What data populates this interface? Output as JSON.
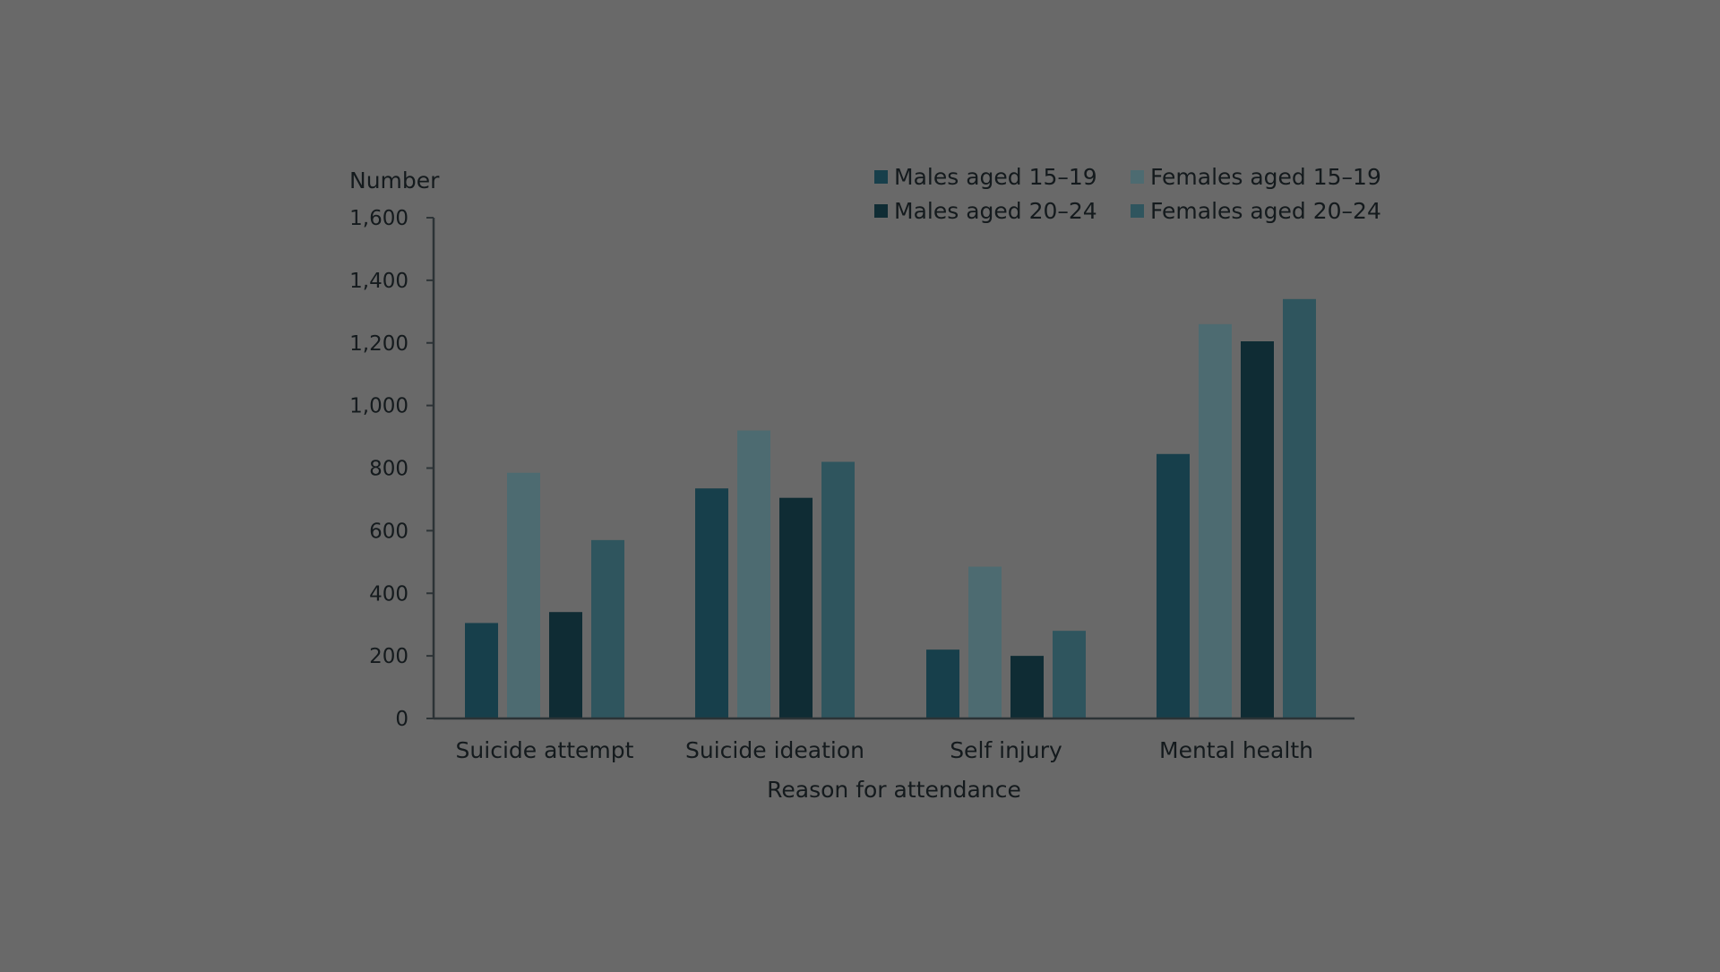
{
  "colors": {
    "background": "#696969",
    "axis": "#2c3336",
    "text": "#141a1d"
  },
  "chart_data": {
    "type": "bar",
    "title": "",
    "ylabel": "Number",
    "xlabel": "Reason for attendance",
    "ylim": [
      0,
      1600
    ],
    "yticks": [
      0,
      200,
      400,
      600,
      800,
      1000,
      1200,
      1400,
      1600
    ],
    "ytick_labels": [
      "0",
      "200",
      "400",
      "600",
      "800",
      "1,000",
      "1,200",
      "1,400",
      "1,600"
    ],
    "grid": false,
    "legend_position": "top-right",
    "categories": [
      "Suicide attempt",
      "Suicide ideation",
      "Self injury",
      "Mental health"
    ],
    "series": [
      {
        "name": "Males aged 15–19",
        "color": "#173f4b",
        "values": [
          305,
          735,
          220,
          845
        ]
      },
      {
        "name": "Females aged 15–19",
        "color": "#4d6b71",
        "values": [
          785,
          920,
          485,
          1260
        ]
      },
      {
        "name": "Males aged 20–24",
        "color": "#0f2c34",
        "values": [
          340,
          705,
          200,
          1205
        ]
      },
      {
        "name": "Females aged 20–24",
        "color": "#2f555e",
        "values": [
          570,
          820,
          280,
          1340
        ]
      }
    ]
  }
}
